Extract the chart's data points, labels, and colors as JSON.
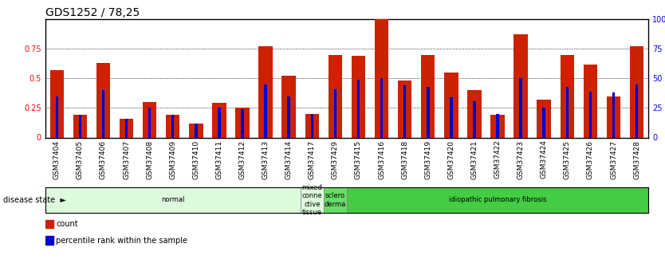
{
  "title": "GDS1252 / 78,25",
  "samples": [
    "GSM37404",
    "GSM37405",
    "GSM37406",
    "GSM37407",
    "GSM37408",
    "GSM37409",
    "GSM37410",
    "GSM37411",
    "GSM37412",
    "GSM37413",
    "GSM37414",
    "GSM37417",
    "GSM37429",
    "GSM37415",
    "GSM37416",
    "GSM37418",
    "GSM37419",
    "GSM37420",
    "GSM37421",
    "GSM37422",
    "GSM37423",
    "GSM37424",
    "GSM37425",
    "GSM37426",
    "GSM37427",
    "GSM37428"
  ],
  "count_values": [
    0.57,
    0.19,
    0.63,
    0.16,
    0.3,
    0.19,
    0.12,
    0.29,
    0.25,
    0.77,
    0.52,
    0.2,
    0.7,
    0.69,
    1.0,
    0.48,
    0.7,
    0.55,
    0.4,
    0.19,
    0.87,
    0.32,
    0.7,
    0.62,
    0.35,
    0.77
  ],
  "percentile_values": [
    0.35,
    0.19,
    0.4,
    0.16,
    0.25,
    0.19,
    0.12,
    0.25,
    0.24,
    0.45,
    0.35,
    0.2,
    0.41,
    0.49,
    0.5,
    0.44,
    0.43,
    0.34,
    0.31,
    0.2,
    0.5,
    0.25,
    0.43,
    0.39,
    0.38,
    0.45
  ],
  "disease_groups": [
    {
      "label": "normal",
      "start": 0,
      "end": 11,
      "color": "#ddfadd",
      "text_color": "#000000"
    },
    {
      "label": "mixed\nconne\nctive\ntissue",
      "start": 11,
      "end": 12,
      "color": "#ddfadd",
      "text_color": "#000000"
    },
    {
      "label": "sclero\nderma",
      "start": 12,
      "end": 13,
      "color": "#66dd66",
      "text_color": "#000000"
    },
    {
      "label": "idiopathic pulmonary fibrosis",
      "start": 13,
      "end": 26,
      "color": "#44cc44",
      "text_color": "#000000"
    }
  ],
  "bar_color_red": "#cc2200",
  "bar_color_blue": "#0000cc",
  "bar_width": 0.6,
  "blue_bar_width": 0.12,
  "ylim": [
    0,
    1.0
  ],
  "yticks_left": [
    0,
    0.25,
    0.5,
    0.75
  ],
  "ytick_labels_left": [
    "0",
    "0.25",
    "0.5",
    "0.75"
  ],
  "yticks_right": [
    0,
    25,
    50,
    75,
    100
  ],
  "ytick_labels_right": [
    "0",
    "25",
    "50",
    "75",
    "100%"
  ],
  "grid_lines": [
    0.25,
    0.5,
    0.75
  ],
  "title_fontsize": 10,
  "tick_fontsize": 7,
  "label_fontsize": 7,
  "legend_items": [
    {
      "label": "count",
      "color": "#cc2200"
    },
    {
      "label": "percentile rank within the sample",
      "color": "#0000cc"
    }
  ]
}
